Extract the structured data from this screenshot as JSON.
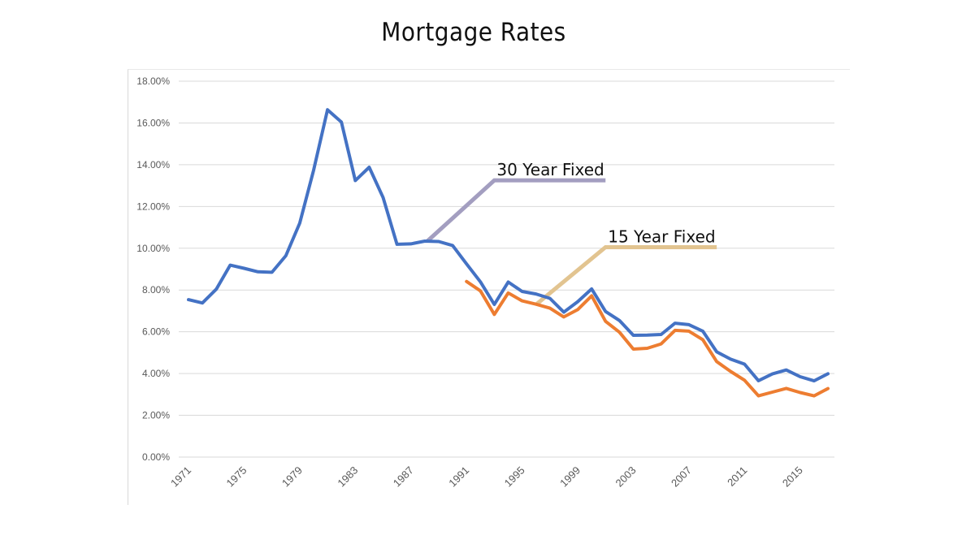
{
  "page": {
    "title": "Mortgage Rates"
  },
  "chart_data": {
    "type": "line",
    "title": "Mortgage Rates",
    "xlabel": "",
    "ylabel": "",
    "ylim": [
      0,
      18
    ],
    "xlim": [
      1971,
      2017
    ],
    "y_ticks": [
      "0.00%",
      "2.00%",
      "4.00%",
      "6.00%",
      "8.00%",
      "10.00%",
      "12.00%",
      "14.00%",
      "16.00%",
      "18.00%"
    ],
    "x_ticks": [
      "1971",
      "1975",
      "1979",
      "1983",
      "1987",
      "1991",
      "1995",
      "1999",
      "2003",
      "2007",
      "2011",
      "2015"
    ],
    "grid": true,
    "legend": "none",
    "series": [
      {
        "name": "30 Year Fixed",
        "color": "#4472c4",
        "x": [
          1971,
          1972,
          1973,
          1974,
          1975,
          1976,
          1977,
          1978,
          1979,
          1980,
          1981,
          1982,
          1983,
          1984,
          1985,
          1986,
          1987,
          1988,
          1989,
          1990,
          1991,
          1992,
          1993,
          1994,
          1995,
          1996,
          1997,
          1998,
          1999,
          2000,
          2001,
          2002,
          2003,
          2004,
          2005,
          2006,
          2007,
          2008,
          2009,
          2010,
          2011,
          2012,
          2013,
          2014,
          2015,
          2016,
          2017
        ],
        "values": [
          7.54,
          7.38,
          8.04,
          9.19,
          9.04,
          8.87,
          8.85,
          9.64,
          11.2,
          13.74,
          16.63,
          16.04,
          13.24,
          13.88,
          12.43,
          10.19,
          10.21,
          10.34,
          10.32,
          10.13,
          9.25,
          8.39,
          7.31,
          8.38,
          7.93,
          7.81,
          7.6,
          6.94,
          7.44,
          8.05,
          6.97,
          6.54,
          5.83,
          5.84,
          5.87,
          6.41,
          6.34,
          6.03,
          5.04,
          4.69,
          4.45,
          3.66,
          3.98,
          4.17,
          3.85,
          3.65,
          3.99
        ]
      },
      {
        "name": "15 Year Fixed",
        "color": "#ed7d31",
        "x": [
          1991,
          1992,
          1993,
          1994,
          1995,
          1996,
          1997,
          1998,
          1999,
          2000,
          2001,
          2002,
          2003,
          2004,
          2005,
          2006,
          2007,
          2008,
          2009,
          2010,
          2011,
          2012,
          2013,
          2014,
          2015,
          2016,
          2017
        ],
        "values": [
          8.41,
          7.96,
          6.83,
          7.86,
          7.48,
          7.32,
          7.13,
          6.71,
          7.06,
          7.72,
          6.5,
          5.98,
          5.17,
          5.21,
          5.42,
          6.07,
          6.03,
          5.62,
          4.57,
          4.1,
          3.68,
          2.93,
          3.11,
          3.29,
          3.09,
          2.93,
          3.28
        ]
      }
    ],
    "annotations": [
      {
        "text": "30 Year Fixed",
        "color": "#a39ec0",
        "anchor_x": 1988.2,
        "anchor_y": 10.35,
        "elbow_x": 1993.0,
        "elbow_y": 13.25,
        "end_x": 2001.0
      },
      {
        "text": "15 Year Fixed",
        "color": "#e2c490",
        "anchor_x": 1996.0,
        "anchor_y": 7.3,
        "elbow_x": 2001.0,
        "elbow_y": 10.05,
        "end_x": 2009.0
      }
    ]
  }
}
